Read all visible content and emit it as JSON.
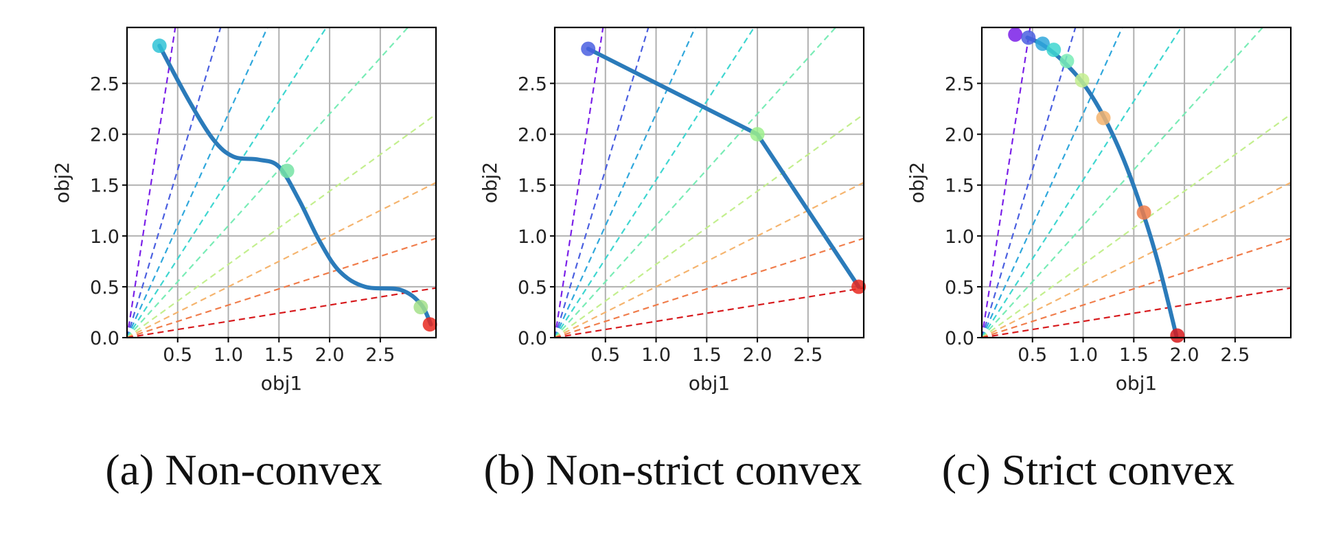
{
  "chart_data": [
    {
      "type": "line",
      "caption": "(a) Non-convex",
      "xlabel": "obj1",
      "ylabel": "obj2",
      "xlim": [
        0,
        3.05
      ],
      "ylim": [
        0,
        3.05
      ],
      "xticks": [
        0.5,
        1.0,
        1.5,
        2.0,
        2.5
      ],
      "xtick_labels": [
        "0.5",
        "1.0",
        "1.5",
        "2.0",
        "2.5"
      ],
      "yticks": [
        0.0,
        0.5,
        1.0,
        1.5,
        2.0,
        2.5
      ],
      "ytick_labels": [
        "0.0",
        "0.5",
        "1.0",
        "1.5",
        "2.0",
        "2.5"
      ],
      "grid": true,
      "pareto_front": {
        "color": "#2b7bba",
        "x": [
          0.32,
          0.6,
          0.85,
          1.05,
          1.3,
          1.5,
          1.7,
          1.9,
          2.1,
          2.35,
          2.7,
          2.9,
          3.0
        ],
        "y": [
          2.87,
          2.35,
          1.95,
          1.78,
          1.75,
          1.68,
          1.35,
          0.95,
          0.65,
          0.5,
          0.47,
          0.33,
          0.13
        ]
      },
      "preference_points": [
        {
          "x": 0.32,
          "y": 2.87,
          "color": "#2fc3d6"
        },
        {
          "x": 1.58,
          "y": 1.64,
          "color": "#76e3a4"
        },
        {
          "x": 2.9,
          "y": 0.3,
          "color": "#a5e08a"
        },
        {
          "x": 2.99,
          "y": 0.13,
          "color": "#e8281f"
        }
      ]
    },
    {
      "type": "line",
      "caption": "(b) Non-strict convex",
      "xlabel": "obj1",
      "ylabel": "obj2",
      "xlim": [
        0,
        3.05
      ],
      "ylim": [
        0,
        3.05
      ],
      "xticks": [
        0.5,
        1.0,
        1.5,
        2.0,
        2.5
      ],
      "xtick_labels": [
        "0.5",
        "1.0",
        "1.5",
        "2.0",
        "2.5"
      ],
      "yticks": [
        0.0,
        0.5,
        1.0,
        1.5,
        2.0,
        2.5
      ],
      "ytick_labels": [
        "0.0",
        "0.5",
        "1.0",
        "1.5",
        "2.0",
        "2.5"
      ],
      "grid": true,
      "pareto_front": {
        "color": "#2b7bba",
        "x": [
          0.33,
          2.0,
          3.0
        ],
        "y": [
          2.84,
          2.0,
          0.5
        ]
      },
      "preference_points": [
        {
          "x": 0.33,
          "y": 2.84,
          "color": "#4a5fe0"
        },
        {
          "x": 2.0,
          "y": 2.0,
          "color": "#9cf08c"
        },
        {
          "x": 3.0,
          "y": 0.5,
          "color": "#e8281f"
        }
      ]
    },
    {
      "type": "line",
      "caption": "(c) Strict convex",
      "xlabel": "obj1",
      "ylabel": "obj2",
      "xlim": [
        0,
        3.05
      ],
      "ylim": [
        0,
        3.05
      ],
      "xticks": [
        0.5,
        1.0,
        1.5,
        2.0,
        2.5
      ],
      "xtick_labels": [
        "0.5",
        "1.0",
        "1.5",
        "2.0",
        "2.5"
      ],
      "yticks": [
        0.0,
        0.5,
        1.0,
        1.5,
        2.0,
        2.5
      ],
      "ytick_labels": [
        "0.0",
        "0.5",
        "1.0",
        "1.5",
        "2.0",
        "2.5"
      ],
      "grid": true,
      "pareto_front": {
        "color": "#2b7bba",
        "x": [
          0.45,
          0.6,
          0.8,
          1.0,
          1.2,
          1.4,
          1.6,
          1.75,
          1.92
        ],
        "y": [
          2.95,
          2.88,
          2.72,
          2.5,
          2.18,
          1.75,
          1.2,
          0.7,
          0.02
        ]
      },
      "preference_points": [
        {
          "x": 0.33,
          "y": 2.98,
          "color": "#7a1fe8"
        },
        {
          "x": 0.46,
          "y": 2.95,
          "color": "#4a5fe0"
        },
        {
          "x": 0.6,
          "y": 2.89,
          "color": "#2fa7dc"
        },
        {
          "x": 0.71,
          "y": 2.83,
          "color": "#3ed6d0"
        },
        {
          "x": 0.84,
          "y": 2.72,
          "color": "#79ecb6"
        },
        {
          "x": 0.99,
          "y": 2.53,
          "color": "#c3ef8e"
        },
        {
          "x": 1.2,
          "y": 2.16,
          "color": "#f5b46e"
        },
        {
          "x": 1.6,
          "y": 1.23,
          "color": "#f07c4a"
        },
        {
          "x": 1.93,
          "y": 0.02,
          "color": "#d7191c"
        }
      ]
    }
  ],
  "preference_rays": {
    "slopes": [
      6.4,
      3.3,
      2.2,
      1.55,
      1.1,
      0.72,
      0.5,
      0.32,
      0.16
    ],
    "colors": [
      "#7a1fe8",
      "#4a5fe0",
      "#2fa7dc",
      "#3ed6d0",
      "#79ecb6",
      "#c3ef8e",
      "#f5b46e",
      "#f07c4a",
      "#d7191c"
    ]
  }
}
